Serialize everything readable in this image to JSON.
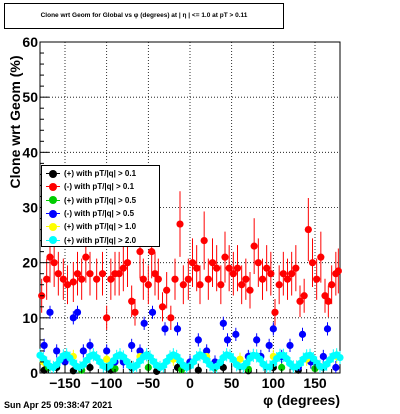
{
  "header": {
    "title": "Clone wrt Geom for Global vs φ (degrees) at | η | <= 1.0 at pT > 0.11"
  },
  "footer": {
    "timestamp": "Sun Apr 25 09:38:47 2021"
  },
  "chart_data": {
    "type": "scatter",
    "xlabel": "φ (degrees)",
    "ylabel": "Clone wrt Geom (%)",
    "xlim": [
      -180,
      180
    ],
    "ylim": [
      0,
      60
    ],
    "xticks": [
      "−150",
      "−100",
      "−50",
      "0",
      "50",
      "100",
      "150"
    ],
    "xtick_values": [
      -150,
      -100,
      -50,
      0,
      50,
      100,
      150
    ],
    "yticks": [
      "0",
      "10",
      "20",
      "30",
      "40",
      "50",
      "60"
    ],
    "ytick_values": [
      0,
      10,
      20,
      30,
      40,
      50,
      60
    ],
    "grid": true,
    "legend_position": "center-left",
    "series": [
      {
        "name": "(+) with pT/|q| > 0.1",
        "color": "#000000",
        "points": [
          [
            -175,
            0.5
          ],
          [
            -160,
            1
          ],
          [
            -140,
            0.4
          ],
          [
            -120,
            1
          ],
          [
            -95,
            0.5
          ],
          [
            -70,
            1
          ],
          [
            -40,
            0.3
          ],
          [
            -15,
            1
          ],
          [
            10,
            0.5
          ],
          [
            40,
            1
          ],
          [
            70,
            0.4
          ],
          [
            100,
            1
          ],
          [
            130,
            0.5
          ],
          [
            160,
            1
          ]
        ]
      },
      {
        "name": "(-) with pT/|q| > 0.1",
        "color": "#ff0000",
        "points": [
          [
            -178,
            14
          ],
          [
            -172,
            17
          ],
          [
            -168,
            21
          ],
          [
            -163,
            20
          ],
          [
            -158,
            18
          ],
          [
            -152,
            17
          ],
          [
            -147,
            16
          ],
          [
            -140,
            16.5
          ],
          [
            -135,
            18
          ],
          [
            -130,
            17
          ],
          [
            -125,
            21
          ],
          [
            -120,
            18
          ],
          [
            -112,
            17
          ],
          [
            -105,
            18
          ],
          [
            -100,
            10
          ],
          [
            -95,
            17
          ],
          [
            -90,
            18
          ],
          [
            -85,
            18
          ],
          [
            -80,
            19
          ],
          [
            -75,
            20
          ],
          [
            -70,
            13
          ],
          [
            -66,
            11
          ],
          [
            -60,
            22
          ],
          [
            -56,
            17
          ],
          [
            -50,
            16
          ],
          [
            -46,
            22
          ],
          [
            -42,
            18
          ],
          [
            -38,
            17
          ],
          [
            -33,
            12
          ],
          [
            -28,
            15
          ],
          [
            -23,
            10
          ],
          [
            -18,
            17
          ],
          [
            -12,
            27
          ],
          [
            -8,
            16
          ],
          [
            -2,
            17
          ],
          [
            3,
            20
          ],
          [
            8,
            19
          ],
          [
            12,
            16
          ],
          [
            17,
            24
          ],
          [
            22,
            17
          ],
          [
            27,
            20
          ],
          [
            32,
            19
          ],
          [
            37,
            16
          ],
          [
            42,
            21
          ],
          [
            47,
            19
          ],
          [
            52,
            18
          ],
          [
            57,
            19
          ],
          [
            62,
            16
          ],
          [
            67,
            17
          ],
          [
            72,
            15
          ],
          [
            77,
            23
          ],
          [
            82,
            20
          ],
          [
            87,
            17
          ],
          [
            92,
            19
          ],
          [
            97,
            18
          ],
          [
            102,
            11
          ],
          [
            107,
            16
          ],
          [
            112,
            18
          ],
          [
            117,
            17
          ],
          [
            122,
            18
          ],
          [
            127,
            19
          ],
          [
            132,
            13
          ],
          [
            137,
            14
          ],
          [
            142,
            26
          ],
          [
            147,
            20
          ],
          [
            152,
            17
          ],
          [
            157,
            21
          ],
          [
            162,
            14
          ],
          [
            166,
            13
          ],
          [
            170,
            16
          ],
          [
            175,
            18
          ],
          [
            178,
            18.5
          ]
        ]
      },
      {
        "name": "(+) with pT/|q| > 0.5",
        "color": "#00cc00",
        "points": [
          [
            -170,
            1
          ],
          [
            -130,
            0.5
          ],
          [
            -90,
            0.8
          ],
          [
            -50,
            1
          ],
          [
            -10,
            0.6
          ],
          [
            30,
            1
          ],
          [
            70,
            0.7
          ],
          [
            110,
            1
          ],
          [
            150,
            0.8
          ]
        ]
      },
      {
        "name": "(-) with pT/|q| > 0.5",
        "color": "#0000ff",
        "points": [
          [
            -175,
            5
          ],
          [
            -168,
            11
          ],
          [
            -160,
            4
          ],
          [
            -150,
            2
          ],
          [
            -140,
            10
          ],
          [
            -135,
            11
          ],
          [
            -128,
            4
          ],
          [
            -120,
            5
          ],
          [
            -100,
            4
          ],
          [
            -90,
            2
          ],
          [
            -80,
            2
          ],
          [
            -70,
            5
          ],
          [
            -60,
            4
          ],
          [
            -55,
            9
          ],
          [
            -45,
            11
          ],
          [
            -30,
            8
          ],
          [
            -15,
            8
          ],
          [
            0,
            2
          ],
          [
            10,
            6
          ],
          [
            20,
            4
          ],
          [
            30,
            2
          ],
          [
            40,
            9
          ],
          [
            45,
            6
          ],
          [
            55,
            7
          ],
          [
            70,
            3
          ],
          [
            80,
            6
          ],
          [
            85,
            3
          ],
          [
            95,
            5
          ],
          [
            100,
            8
          ],
          [
            110,
            3
          ],
          [
            120,
            5
          ],
          [
            130,
            1
          ],
          [
            135,
            7
          ],
          [
            145,
            2
          ],
          [
            160,
            3
          ],
          [
            165,
            8
          ],
          [
            175,
            1
          ]
        ]
      },
      {
        "name": "(+) with pT/|q| > 1.0",
        "color": "#ffff00",
        "points": [
          [
            -176,
            2
          ],
          [
            -140,
            3
          ],
          [
            -100,
            2.5
          ],
          [
            -60,
            3
          ],
          [
            -20,
            2.5
          ],
          [
            20,
            3
          ],
          [
            60,
            2.5
          ],
          [
            100,
            3
          ],
          [
            140,
            2.5
          ],
          [
            176,
            3
          ]
        ]
      },
      {
        "name": "(+) with pT/|q| > 2.0",
        "color": "#00ffff",
        "points": [
          [
            -180,
            3.2
          ],
          [
            -176,
            2.6
          ],
          [
            -172,
            1.8
          ],
          [
            -168,
            1.2
          ],
          [
            -164,
            1.0
          ],
          [
            -160,
            1.5
          ],
          [
            -156,
            2.4
          ],
          [
            -152,
            3.1
          ],
          [
            -148,
            3.3
          ],
          [
            -144,
            2.7
          ],
          [
            -140,
            1.9
          ],
          [
            -136,
            1.2
          ],
          [
            -132,
            1.0
          ],
          [
            -128,
            1.5
          ],
          [
            -124,
            2.3
          ],
          [
            -120,
            3.0
          ],
          [
            -116,
            3.3
          ],
          [
            -112,
            2.8
          ],
          [
            -108,
            2.0
          ],
          [
            -104,
            1.3
          ],
          [
            -100,
            1.0
          ],
          [
            -96,
            1.4
          ],
          [
            -92,
            2.2
          ],
          [
            -88,
            3.0
          ],
          [
            -84,
            3.3
          ],
          [
            -80,
            2.9
          ],
          [
            -76,
            2.1
          ],
          [
            -72,
            1.3
          ],
          [
            -68,
            1.0
          ],
          [
            -64,
            1.4
          ],
          [
            -60,
            2.2
          ],
          [
            -56,
            2.9
          ],
          [
            -52,
            3.3
          ],
          [
            -48,
            2.9
          ],
          [
            -44,
            2.1
          ],
          [
            -40,
            1.4
          ],
          [
            -36,
            1.0
          ],
          [
            -32,
            1.3
          ],
          [
            -28,
            2.1
          ],
          [
            -24,
            2.9
          ],
          [
            -20,
            3.3
          ],
          [
            -16,
            3.0
          ],
          [
            -12,
            2.2
          ],
          [
            -8,
            1.4
          ],
          [
            -4,
            1.0
          ],
          [
            0,
            1.3
          ],
          [
            4,
            2.0
          ],
          [
            8,
            2.8
          ],
          [
            12,
            3.3
          ],
          [
            16,
            3.0
          ],
          [
            20,
            2.3
          ],
          [
            24,
            1.5
          ],
          [
            28,
            1.0
          ],
          [
            32,
            1.2
          ],
          [
            36,
            1.9
          ],
          [
            40,
            2.8
          ],
          [
            44,
            3.3
          ],
          [
            48,
            3.1
          ],
          [
            52,
            2.4
          ],
          [
            56,
            1.5
          ],
          [
            60,
            1.1
          ],
          [
            64,
            1.2
          ],
          [
            68,
            1.8
          ],
          [
            72,
            2.7
          ],
          [
            76,
            3.2
          ],
          [
            80,
            3.1
          ],
          [
            84,
            2.5
          ],
          [
            88,
            1.6
          ],
          [
            92,
            1.1
          ],
          [
            96,
            1.1
          ],
          [
            100,
            1.7
          ],
          [
            104,
            2.6
          ],
          [
            108,
            3.2
          ],
          [
            112,
            3.2
          ],
          [
            116,
            2.6
          ],
          [
            120,
            1.7
          ],
          [
            124,
            1.1
          ],
          [
            128,
            1.1
          ],
          [
            132,
            1.7
          ],
          [
            136,
            2.5
          ],
          [
            140,
            3.1
          ],
          [
            144,
            3.2
          ],
          [
            148,
            2.6
          ],
          [
            152,
            1.8
          ],
          [
            156,
            1.2
          ],
          [
            160,
            1.0
          ],
          [
            164,
            1.6
          ],
          [
            168,
            2.4
          ],
          [
            172,
            3.1
          ],
          [
            176,
            3.3
          ],
          [
            180,
            2.8
          ]
        ]
      }
    ]
  }
}
